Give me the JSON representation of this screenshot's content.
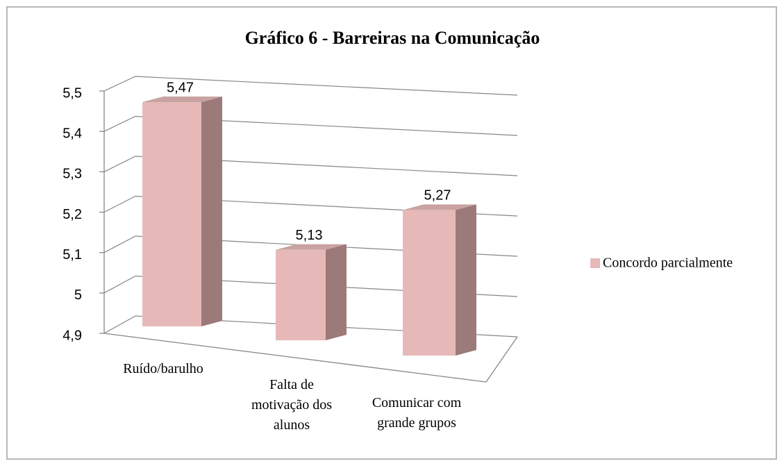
{
  "chart_data": {
    "type": "bar3d",
    "title": "Gráfico 6 - Barreiras na Comunicação",
    "categories": [
      "Ruído/barulho",
      "Falta de motivação dos alunos",
      "Comunicar com grande grupos"
    ],
    "series": [
      {
        "name": "Concordo parcialmente",
        "color": "#e6b9b8",
        "values": [
          5.47,
          5.13,
          5.27
        ],
        "value_labels": [
          "5,47",
          "5,13",
          "5,27"
        ]
      }
    ],
    "ylim": [
      4.9,
      5.5
    ],
    "yticks": [
      {
        "value": 4.9,
        "label": "4,9"
      },
      5,
      {
        "value": 5.1,
        "label": "5,1"
      },
      {
        "value": 5.2,
        "label": "5,2"
      },
      {
        "value": 5.3,
        "label": "5,3"
      },
      {
        "value": 5.4,
        "label": "5,4"
      },
      {
        "value": 5.5,
        "label": "5,5"
      }
    ],
    "grid": true,
    "legend": "right"
  }
}
